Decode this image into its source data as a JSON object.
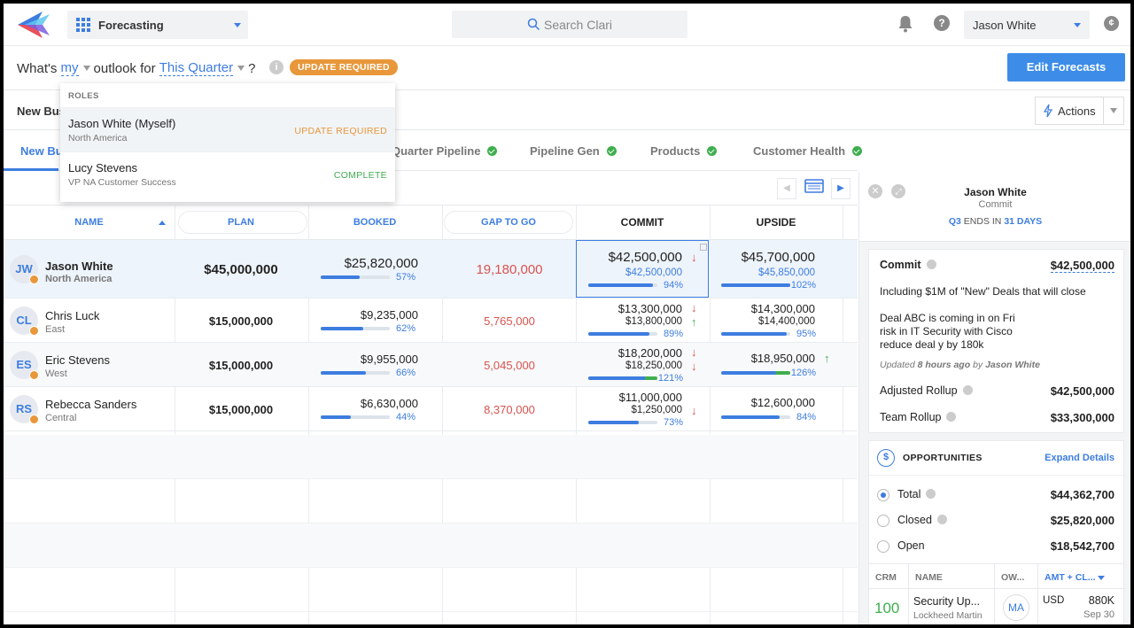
{
  "topbar": {
    "app_label": "Forecasting",
    "search_placeholder": "Search Clari",
    "user_name": "Jason White",
    "currency_glyph": "¢"
  },
  "question": {
    "prefix": "What's",
    "who": "my",
    "middle": "outlook for",
    "period": "This Quarter",
    "suffix": "?",
    "info_glyph": "i",
    "badge": "UPDATE REQUIRED",
    "edit_button": "Edit Forecasts"
  },
  "section": {
    "title": "New Bus",
    "actions_label": "Actions"
  },
  "tabs": [
    {
      "label": "New Bu"
    },
    {
      "label": "Quarter Pipeline"
    },
    {
      "label": "Pipeline Gen"
    },
    {
      "label": "Products"
    },
    {
      "label": "Customer Health"
    }
  ],
  "dropdown": {
    "heading": "ROLES",
    "items": [
      {
        "name": "Jason White (Myself)",
        "sub": "North America",
        "status": "UPDATE REQUIRED",
        "status_color": "#e8973a"
      },
      {
        "name": "Lucy Stevens",
        "sub": "VP NA Customer Success",
        "status": "COMPLETE",
        "status_color": "#3fae4f"
      }
    ]
  },
  "table": {
    "headers": {
      "name": "NAME",
      "plan": "PLAN",
      "booked": "BOOKED",
      "gap": "GAP TO GO",
      "commit": "COMMIT",
      "upside": "UPSIDE"
    },
    "rows": [
      {
        "initials": "JW",
        "name": "Jason White",
        "region": "North America",
        "plan": "$45,000,000",
        "booked": "$25,820,000",
        "booked_pct": "57%",
        "booked_fill": 0.57,
        "gap": "19,180,000",
        "commit": "$42,500,000",
        "commit_sub": "$42,500,000",
        "commit_pct": "94%",
        "commit_fill": 0.94,
        "upside": "$45,700,000",
        "upside_sub": "$45,850,000",
        "upside_pct": "102%",
        "upside_fill": 1.0
      },
      {
        "initials": "CL",
        "name": "Chris Luck",
        "region": "East",
        "plan": "$15,000,000",
        "booked": "$9,235,000",
        "booked_pct": "62%",
        "booked_fill": 0.62,
        "gap": "5,765,000",
        "commit": "$13,300,000",
        "commit_sub": "$13,800,000",
        "commit_pct": "89%",
        "commit_fill": 0.89,
        "upside": "$14,300,000",
        "upside_sub": "$14,400,000",
        "upside_pct": "95%",
        "upside_fill": 0.95
      },
      {
        "initials": "ES",
        "name": "Eric Stevens",
        "region": "West",
        "plan": "$15,000,000",
        "booked": "$9,955,000",
        "booked_pct": "66%",
        "booked_fill": 0.66,
        "gap": "5,045,000",
        "commit": "$18,200,000",
        "commit_sub": "$18,250,000",
        "commit_pct": "121%",
        "commit_fill": 1.0,
        "upside": "$18,950,000",
        "upside_sub": "",
        "upside_pct": "126%",
        "upside_fill": 1.0
      },
      {
        "initials": "RS",
        "name": "Rebecca Sanders",
        "region": "Central",
        "plan": "$15,000,000",
        "booked": "$6,630,000",
        "booked_pct": "44%",
        "booked_fill": 0.44,
        "gap": "8,370,000",
        "commit": "$11,000,000",
        "commit_sub": "$1,250,000",
        "commit_pct": "73%",
        "commit_fill": 0.73,
        "upside": "$12,600,000",
        "upside_sub": "",
        "upside_pct": "84%",
        "upside_fill": 0.84
      }
    ]
  },
  "panel": {
    "name": "Jason White",
    "subtitle": "Commit",
    "quarter": "Q3",
    "ends_in": "ENDS IN",
    "days": "31 DAYS",
    "commit_label": "Commit",
    "commit_value": "$42,500,000",
    "note_1": "Including $1M of \"New\" Deals that will close",
    "note_2": "Deal ABC is coming in on Fri",
    "note_3": "risk in IT Security with Cisco",
    "note_4": "reduce deal y by 180k",
    "updated_prefix": "Updated",
    "updated_when": "8 hours ago",
    "updated_by": "by",
    "updated_user": "Jason White",
    "adjusted_label": "Adjusted Rollup",
    "adjusted_value": "$42,500,000",
    "team_label": "Team Rollup",
    "team_value": "$33,300,000",
    "opps_title": "OPPORTUNITIES",
    "expand_label": "Expand Details",
    "opps": [
      {
        "label": "Total",
        "value": "$44,362,700",
        "selected": true
      },
      {
        "label": "Closed",
        "value": "$25,820,000",
        "selected": false
      },
      {
        "label": "Open",
        "value": "$18,542,700",
        "selected": false
      }
    ],
    "opp_headers": {
      "crm": "CRM",
      "name": "NAME",
      "owner": "OW...",
      "amount": "AMT + CL..."
    },
    "opp_row": {
      "score": "100",
      "name": "Security Up...",
      "account": "Lockheed Martin",
      "owner": "MA",
      "currency": "USD",
      "amount": "880K",
      "date": "Sep 30"
    }
  }
}
